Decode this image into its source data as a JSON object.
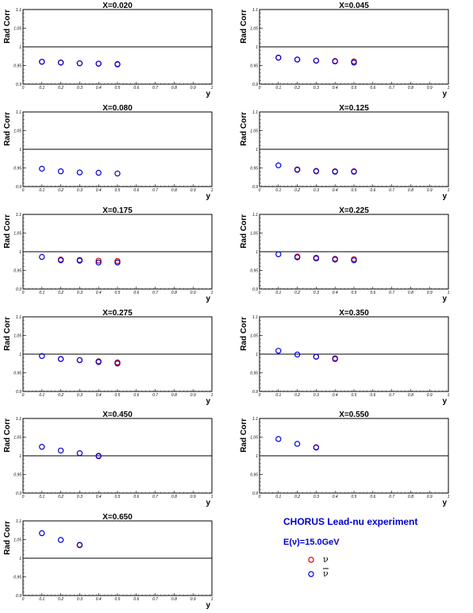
{
  "chart_data": [
    {
      "type": "scatter",
      "title": "X=0.020",
      "xlabel": "y",
      "ylabel": "Rad Corr",
      "xlim": [
        0,
        1
      ],
      "ylim": [
        0.9,
        1.1
      ],
      "x_ticks": [
        "0",
        "0.1",
        "0.2",
        "0.3",
        "0.4",
        "0.5",
        "0.6",
        "0.7",
        "0.8",
        "0.9",
        "1"
      ],
      "y_ticks": [
        "0.9",
        "0.95",
        "1",
        "1.05",
        "1.1"
      ],
      "reference_line": 1,
      "series": [
        {
          "name": "ν",
          "color": "#dd0000",
          "x": [
            0.1,
            0.2,
            0.3,
            0.4,
            0.5
          ],
          "y": [
            0.96,
            0.958,
            0.956,
            0.955,
            0.954
          ]
        },
        {
          "name": "ν̄",
          "color": "#0000dd",
          "x": [
            0.1,
            0.2,
            0.3,
            0.4,
            0.5
          ],
          "y": [
            0.96,
            0.958,
            0.956,
            0.955,
            0.953
          ]
        }
      ]
    },
    {
      "type": "scatter",
      "title": "X=0.045",
      "xlabel": "y",
      "ylabel": "Rad Corr",
      "xlim": [
        0,
        1
      ],
      "ylim": [
        0.9,
        1.1
      ],
      "x_ticks": [
        "0",
        "0.1",
        "0.2",
        "0.3",
        "0.4",
        "0.5",
        "0.6",
        "0.7",
        "0.8",
        "0.9",
        "1"
      ],
      "y_ticks": [
        "0.9",
        "0.95",
        "1",
        "1.05",
        "1.1"
      ],
      "reference_line": 1,
      "series": [
        {
          "name": "ν",
          "color": "#dd0000",
          "x": [
            0.1,
            0.2,
            0.3,
            0.4,
            0.5
          ],
          "y": [
            0.971,
            0.966,
            0.963,
            0.962,
            0.961
          ]
        },
        {
          "name": "ν̄",
          "color": "#0000dd",
          "x": [
            0.1,
            0.2,
            0.3,
            0.4,
            0.5
          ],
          "y": [
            0.971,
            0.966,
            0.963,
            0.961,
            0.958
          ]
        }
      ]
    },
    {
      "type": "scatter",
      "title": "X=0.080",
      "xlabel": "y",
      "ylabel": "Rad Corr",
      "xlim": [
        0,
        1
      ],
      "ylim": [
        0.9,
        1.1
      ],
      "x_ticks": [
        "0",
        "0.1",
        "0.2",
        "0.3",
        "0.4",
        "0.5",
        "0.6",
        "0.7",
        "0.8",
        "0.9",
        "1"
      ],
      "y_ticks": [
        "0.9",
        "0.95",
        "1",
        "1.05",
        "1.1"
      ],
      "reference_line": 1,
      "series": [
        {
          "name": "ν",
          "color": "#dd0000",
          "x": [],
          "y": []
        },
        {
          "name": "ν̄",
          "color": "#0000dd",
          "x": [
            0.1,
            0.2,
            0.3,
            0.4,
            0.5
          ],
          "y": [
            0.948,
            0.941,
            0.938,
            0.937,
            0.935
          ]
        }
      ]
    },
    {
      "type": "scatter",
      "title": "X=0.125",
      "xlabel": "y",
      "ylabel": "Rad Corr",
      "xlim": [
        0,
        1
      ],
      "ylim": [
        0.9,
        1.1
      ],
      "x_ticks": [
        "0",
        "0.1",
        "0.2",
        "0.3",
        "0.4",
        "0.5",
        "0.6",
        "0.7",
        "0.8",
        "0.9",
        "1"
      ],
      "y_ticks": [
        "0.9",
        "0.95",
        "1",
        "1.05",
        "1.1"
      ],
      "reference_line": 1,
      "series": [
        {
          "name": "ν",
          "color": "#dd0000",
          "x": [
            0.2,
            0.3,
            0.4,
            0.5
          ],
          "y": [
            0.946,
            0.942,
            0.941,
            0.941
          ]
        },
        {
          "name": "ν̄",
          "color": "#0000dd",
          "x": [
            0.1,
            0.2,
            0.3,
            0.4,
            0.5
          ],
          "y": [
            0.957,
            0.945,
            0.941,
            0.94,
            0.94
          ]
        }
      ]
    },
    {
      "type": "scatter",
      "title": "X=0.175",
      "xlabel": "y",
      "ylabel": "Rad Corr",
      "xlim": [
        0,
        1
      ],
      "ylim": [
        0.9,
        1.1
      ],
      "x_ticks": [
        "0",
        "0.1",
        "0.2",
        "0.3",
        "0.4",
        "0.5",
        "0.6",
        "0.7",
        "0.8",
        "0.9",
        "1"
      ],
      "y_ticks": [
        "0.9",
        "0.95",
        "1",
        "1.05",
        "1.1"
      ],
      "reference_line": 1,
      "series": [
        {
          "name": "ν",
          "color": "#dd0000",
          "x": [
            0.2,
            0.3,
            0.4,
            0.5
          ],
          "y": [
            0.979,
            0.978,
            0.976,
            0.975
          ]
        },
        {
          "name": "ν̄",
          "color": "#0000dd",
          "x": [
            0.1,
            0.2,
            0.3,
            0.4,
            0.5
          ],
          "y": [
            0.986,
            0.977,
            0.976,
            0.971,
            0.971
          ]
        }
      ]
    },
    {
      "type": "scatter",
      "title": "X=0.225",
      "xlabel": "y",
      "ylabel": "Rad Corr",
      "xlim": [
        0,
        1
      ],
      "ylim": [
        0.9,
        1.1
      ],
      "x_ticks": [
        "0",
        "0.1",
        "0.2",
        "0.3",
        "0.4",
        "0.5",
        "0.6",
        "0.7",
        "0.8",
        "0.9",
        "1"
      ],
      "y_ticks": [
        "0.9",
        "0.95",
        "1",
        "1.05",
        "1.1"
      ],
      "reference_line": 1,
      "series": [
        {
          "name": "ν",
          "color": "#dd0000",
          "x": [
            0.2,
            0.3,
            0.4,
            0.5
          ],
          "y": [
            0.987,
            0.984,
            0.981,
            0.98
          ]
        },
        {
          "name": "ν̄",
          "color": "#0000dd",
          "x": [
            0.1,
            0.2,
            0.3,
            0.4,
            0.5
          ],
          "y": [
            0.993,
            0.985,
            0.982,
            0.979,
            0.977
          ]
        }
      ]
    },
    {
      "type": "scatter",
      "title": "X=0.275",
      "xlabel": "y",
      "ylabel": "Rad Corr",
      "xlim": [
        0,
        1
      ],
      "ylim": [
        0.9,
        1.1
      ],
      "x_ticks": [
        "0",
        "0.1",
        "0.2",
        "0.3",
        "0.4",
        "0.5",
        "0.6",
        "0.7",
        "0.8",
        "0.9",
        "1"
      ],
      "y_ticks": [
        "0.9",
        "0.95",
        "1",
        "1.05",
        "1.1"
      ],
      "reference_line": 1,
      "series": [
        {
          "name": "ν",
          "color": "#dd0000",
          "x": [
            0.2,
            0.3,
            0.4,
            0.5
          ],
          "y": [
            0.987,
            0.984,
            0.981,
            0.978
          ]
        },
        {
          "name": "ν̄",
          "color": "#0000dd",
          "x": [
            0.1,
            0.2,
            0.3,
            0.4,
            0.5
          ],
          "y": [
            0.995,
            0.987,
            0.984,
            0.979,
            0.975
          ]
        }
      ]
    },
    {
      "type": "scatter",
      "title": "X=0.350",
      "xlabel": "y",
      "ylabel": "Rad Corr",
      "xlim": [
        0,
        1
      ],
      "ylim": [
        0.9,
        1.1
      ],
      "x_ticks": [
        "0",
        "0.1",
        "0.2",
        "0.3",
        "0.4",
        "0.5",
        "0.6",
        "0.7",
        "0.8",
        "0.9",
        "1"
      ],
      "y_ticks": [
        "0.9",
        "0.95",
        "1",
        "1.05",
        "1.1"
      ],
      "reference_line": 1,
      "series": [
        {
          "name": "ν",
          "color": "#dd0000",
          "x": [
            0.3,
            0.4
          ],
          "y": [
            0.993,
            0.989
          ]
        },
        {
          "name": "ν̄",
          "color": "#0000dd",
          "x": [
            0.1,
            0.2,
            0.3,
            0.4
          ],
          "y": [
            1.009,
            0.999,
            0.993,
            0.987
          ]
        }
      ]
    },
    {
      "type": "scatter",
      "title": "X=0.450",
      "xlabel": "y",
      "ylabel": "Rad Corr",
      "xlim": [
        0,
        1
      ],
      "ylim": [
        0.9,
        1.1
      ],
      "x_ticks": [
        "0",
        "0.1",
        "0.2",
        "0.3",
        "0.4",
        "0.5",
        "0.6",
        "0.7",
        "0.8",
        "0.9",
        "1"
      ],
      "y_ticks": [
        "0.9",
        "0.95",
        "1",
        "1.05",
        "1.1"
      ],
      "reference_line": 1,
      "series": [
        {
          "name": "ν",
          "color": "#dd0000",
          "x": [
            0.4
          ],
          "y": [
            1.0
          ]
        },
        {
          "name": "ν̄",
          "color": "#0000dd",
          "x": [
            0.1,
            0.2,
            0.3,
            0.4
          ],
          "y": [
            1.024,
            1.014,
            1.007,
            0.999
          ]
        }
      ]
    },
    {
      "type": "scatter",
      "title": "X=0.550",
      "xlabel": "y",
      "ylabel": "Rad Corr",
      "xlim": [
        0,
        1
      ],
      "ylim": [
        0.9,
        1.1
      ],
      "x_ticks": [
        "0",
        "0.1",
        "0.2",
        "0.3",
        "0.4",
        "0.5",
        "0.6",
        "0.7",
        "0.8",
        "0.9",
        "1"
      ],
      "y_ticks": [
        "0.9",
        "0.95",
        "1",
        "1.05",
        "1.1"
      ],
      "reference_line": 1,
      "series": [
        {
          "name": "ν",
          "color": "#dd0000",
          "x": [
            0.3
          ],
          "y": [
            1.023
          ]
        },
        {
          "name": "ν̄",
          "color": "#0000dd",
          "x": [
            0.1,
            0.2,
            0.3
          ],
          "y": [
            1.045,
            1.032,
            1.022
          ]
        }
      ]
    },
    {
      "type": "scatter",
      "title": "X=0.650",
      "xlabel": "y",
      "ylabel": "Rad Corr",
      "xlim": [
        0,
        1
      ],
      "ylim": [
        0.9,
        1.1
      ],
      "x_ticks": [
        "0",
        "0.1",
        "0.2",
        "0.3",
        "0.4",
        "0.5",
        "0.6",
        "0.7",
        "0.8",
        "0.9",
        "1"
      ],
      "y_ticks": [
        "0.9",
        "0.95",
        "1",
        "1.05",
        "1.1"
      ],
      "reference_line": 1,
      "series": [
        {
          "name": "ν",
          "color": "#dd0000",
          "x": [
            0.3
          ],
          "y": [
            1.036
          ]
        },
        {
          "name": "ν̄",
          "color": "#0000dd",
          "x": [
            0.1,
            0.2,
            0.3
          ],
          "y": [
            1.067,
            1.049,
            1.035
          ]
        }
      ]
    }
  ],
  "legend": {
    "title": "CHORUS Lead-nu experiment",
    "energy": "E(ν)=15.0GeV",
    "entries": [
      {
        "label": "ν",
        "color": "#dd0000",
        "overline": false
      },
      {
        "label": "ν",
        "color": "#0000dd",
        "overline": true
      }
    ]
  }
}
